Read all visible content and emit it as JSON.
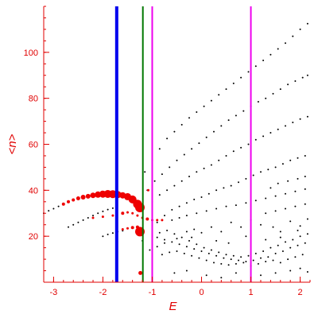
{
  "chart_data": {
    "type": "scatter",
    "xlabel": "E",
    "ylabel": "<n>",
    "xlim": [
      -3.2,
      2.2
    ],
    "ylim": [
      0,
      120
    ],
    "x_ticks": [
      -3,
      -2,
      -1,
      0,
      1,
      2
    ],
    "y_ticks": [
      20,
      40,
      60,
      80,
      100
    ],
    "x_tick_labels": [
      "-3",
      "-2",
      "-1",
      "0",
      "1",
      "2"
    ],
    "y_tick_labels": [
      "20",
      "40",
      "60",
      "80",
      "100"
    ],
    "axis_color": "#e00000",
    "grid": false,
    "vertical_lines": [
      {
        "x": -1.72,
        "color": "#0000ee"
      },
      {
        "x": -1.19,
        "color": "#007700"
      },
      {
        "x": -1.0,
        "color": "#ee00ee"
      },
      {
        "x": 1.0,
        "color": "#ee00ee"
      }
    ],
    "series": [
      {
        "color": "#000000",
        "points": [
          [
            -3.2,
            30.0
          ],
          [
            -3.1,
            31.1
          ],
          [
            -3.0,
            32.0
          ],
          [
            -2.9,
            33.0
          ],
          [
            -2.8,
            34.1
          ],
          [
            -2.7,
            35.0
          ],
          [
            -2.6,
            36.0
          ],
          [
            -2.5,
            36.8
          ],
          [
            -2.4,
            37.4
          ],
          [
            -2.7,
            24.0
          ],
          [
            -2.6,
            25.0
          ],
          [
            -2.5,
            26.0
          ],
          [
            -2.4,
            27.0
          ],
          [
            -2.3,
            28.0
          ],
          [
            -2.2,
            29.0
          ],
          [
            -2.1,
            30.0
          ],
          [
            -2.0,
            30.8
          ],
          [
            -1.9,
            31.6
          ],
          [
            -1.8,
            32.2
          ],
          [
            -2.0,
            20.0
          ],
          [
            -1.9,
            20.8
          ],
          [
            -1.8,
            21.4
          ],
          [
            -1.7,
            22.0
          ],
          [
            -1.6,
            22.4
          ],
          [
            -1.15,
            48.0
          ],
          [
            -1.0,
            53.0
          ],
          [
            -0.85,
            58.0
          ],
          [
            -0.7,
            62.5
          ],
          [
            -0.55,
            65.5
          ],
          [
            -0.4,
            68.5
          ],
          [
            -0.25,
            71.5
          ],
          [
            -0.1,
            74.0
          ],
          [
            0.05,
            76.5
          ],
          [
            0.2,
            79.0
          ],
          [
            0.35,
            81.5
          ],
          [
            0.5,
            84.0
          ],
          [
            0.65,
            86.5
          ],
          [
            0.8,
            89.0
          ],
          [
            0.95,
            91.5
          ],
          [
            1.1,
            94.0
          ],
          [
            1.25,
            96.5
          ],
          [
            1.4,
            99.0
          ],
          [
            1.55,
            101.5
          ],
          [
            1.7,
            104.0
          ],
          [
            1.85,
            107.0
          ],
          [
            2.0,
            110.0
          ],
          [
            2.15,
            112.5
          ],
          [
            -1.1,
            40.0
          ],
          [
            -0.95,
            44.0
          ],
          [
            -0.8,
            47.0
          ],
          [
            -0.65,
            50.0
          ],
          [
            -0.5,
            53.0
          ],
          [
            -0.35,
            55.5
          ],
          [
            -0.2,
            58.0
          ],
          [
            -0.05,
            60.5
          ],
          [
            0.1,
            63.0
          ],
          [
            0.25,
            65.5
          ],
          [
            0.4,
            68.0
          ],
          [
            0.55,
            70.5
          ],
          [
            0.7,
            72.5
          ],
          [
            0.85,
            74.5
          ],
          [
            1.0,
            76.5
          ],
          [
            1.15,
            78.5
          ],
          [
            1.3,
            80.0
          ],
          [
            1.45,
            82.0
          ],
          [
            1.6,
            84.0
          ],
          [
            1.75,
            86.0
          ],
          [
            1.9,
            87.5
          ],
          [
            2.05,
            89.0
          ],
          [
            2.15,
            90.0
          ],
          [
            -1.0,
            35.0
          ],
          [
            -0.85,
            38.0
          ],
          [
            -0.7,
            40.0
          ],
          [
            -0.55,
            42.0
          ],
          [
            -0.4,
            44.0
          ],
          [
            -0.25,
            46.0
          ],
          [
            -0.1,
            48.0
          ],
          [
            0.05,
            49.5
          ],
          [
            0.2,
            51.0
          ],
          [
            0.35,
            53.0
          ],
          [
            0.5,
            55.0
          ],
          [
            0.65,
            57.0
          ],
          [
            0.8,
            58.5
          ],
          [
            0.95,
            60.0
          ],
          [
            1.1,
            62.0
          ],
          [
            1.25,
            63.5
          ],
          [
            1.4,
            65.0
          ],
          [
            1.55,
            66.5
          ],
          [
            1.7,
            68.0
          ],
          [
            1.85,
            69.5
          ],
          [
            2.0,
            71.0
          ],
          [
            2.15,
            72.0
          ],
          [
            -0.9,
            26.0
          ],
          [
            -0.75,
            29.0
          ],
          [
            -0.6,
            31.5
          ],
          [
            -0.45,
            33.0
          ],
          [
            -0.3,
            34.5
          ],
          [
            -0.15,
            36.0
          ],
          [
            0.0,
            37.0
          ],
          [
            0.15,
            38.5
          ],
          [
            0.3,
            40.0
          ],
          [
            0.45,
            41.0
          ],
          [
            0.6,
            42.0
          ],
          [
            0.75,
            43.5
          ],
          [
            0.9,
            45.0
          ],
          [
            1.05,
            46.5
          ],
          [
            1.2,
            48.0
          ],
          [
            1.35,
            49.0
          ],
          [
            1.5,
            50.0
          ],
          [
            1.65,
            51.5
          ],
          [
            1.8,
            53.0
          ],
          [
            1.95,
            54.0
          ],
          [
            2.1,
            55.0
          ],
          [
            -0.6,
            27.0
          ],
          [
            -0.45,
            28.0
          ],
          [
            -0.3,
            29.0
          ],
          [
            -0.1,
            30.0
          ],
          [
            0.1,
            31.0
          ],
          [
            0.3,
            32.0
          ],
          [
            0.5,
            33.0
          ],
          [
            0.7,
            33.5
          ],
          [
            0.9,
            34.5
          ],
          [
            1.1,
            35.5
          ],
          [
            1.3,
            36.5
          ],
          [
            1.5,
            37.5
          ],
          [
            1.7,
            38.5
          ],
          [
            1.9,
            39.5
          ],
          [
            2.1,
            40.5
          ],
          [
            1.4,
            41.0
          ],
          [
            1.55,
            43.0
          ],
          [
            1.75,
            44.0
          ],
          [
            1.95,
            45.0
          ],
          [
            2.1,
            46.0
          ],
          [
            1.3,
            30.0
          ],
          [
            1.5,
            31.0
          ],
          [
            1.7,
            32.0
          ],
          [
            1.9,
            33.0
          ],
          [
            2.1,
            34.0
          ],
          [
            -1.2,
            18.0
          ],
          [
            -1.0,
            20.0
          ],
          [
            -0.85,
            21.5
          ],
          [
            -0.7,
            22.5
          ],
          [
            -0.55,
            21.0
          ],
          [
            -0.4,
            19.5
          ],
          [
            -0.25,
            18.0
          ],
          [
            -0.1,
            16.5
          ],
          [
            0.05,
            15.0
          ],
          [
            0.2,
            14.0
          ],
          [
            0.35,
            13.0
          ],
          [
            0.5,
            12.0
          ],
          [
            0.65,
            11.5
          ],
          [
            0.8,
            11.0
          ],
          [
            0.95,
            11.5
          ],
          [
            1.1,
            12.5
          ],
          [
            1.25,
            13.5
          ],
          [
            1.4,
            15.0
          ],
          [
            1.55,
            16.0
          ],
          [
            1.7,
            17.5
          ],
          [
            1.85,
            18.5
          ],
          [
            2.0,
            20.0
          ],
          [
            2.15,
            21.0
          ],
          [
            -1.05,
            14.0
          ],
          [
            -0.9,
            15.5
          ],
          [
            -0.75,
            17.0
          ],
          [
            -0.6,
            17.5
          ],
          [
            -0.45,
            16.5
          ],
          [
            -0.3,
            15.5
          ],
          [
            -0.15,
            14.5
          ],
          [
            0.0,
            13.5
          ],
          [
            0.15,
            12.5
          ],
          [
            0.3,
            11.5
          ],
          [
            0.45,
            10.5
          ],
          [
            0.6,
            10.0
          ],
          [
            0.75,
            9.5
          ],
          [
            0.9,
            9.0
          ],
          [
            1.05,
            9.5
          ],
          [
            1.2,
            10.5
          ],
          [
            1.35,
            11.0
          ],
          [
            1.5,
            12.5
          ],
          [
            1.65,
            13.5
          ],
          [
            1.8,
            15.0
          ],
          [
            1.95,
            16.0
          ],
          [
            2.1,
            17.0
          ],
          [
            -0.8,
            12.0
          ],
          [
            -0.65,
            13.0
          ],
          [
            -0.5,
            13.5
          ],
          [
            -0.35,
            12.5
          ],
          [
            -0.2,
            11.5
          ],
          [
            -0.05,
            10.5
          ],
          [
            0.1,
            9.5
          ],
          [
            0.25,
            8.5
          ],
          [
            0.4,
            8.0
          ],
          [
            0.55,
            7.5
          ],
          [
            0.7,
            8.0
          ],
          [
            0.85,
            8.5
          ],
          [
            1.0,
            7.0
          ],
          [
            1.15,
            8.0
          ],
          [
            1.3,
            9.0
          ],
          [
            1.45,
            9.5
          ],
          [
            1.6,
            8.5
          ],
          [
            1.75,
            10.0
          ],
          [
            1.9,
            11.0
          ],
          [
            2.05,
            12.0
          ],
          [
            -0.3,
            22.0
          ],
          [
            -0.15,
            23.0
          ],
          [
            0.0,
            21.5
          ],
          [
            0.2,
            24.0
          ],
          [
            0.4,
            22.0
          ],
          [
            0.6,
            26.0
          ],
          [
            0.8,
            24.0
          ],
          [
            1.0,
            27.0
          ],
          [
            1.2,
            25.0
          ],
          [
            1.45,
            24.0
          ],
          [
            1.6,
            22.0
          ],
          [
            1.8,
            26.5
          ],
          [
            2.0,
            24.5
          ],
          [
            2.15,
            27.5
          ],
          [
            -0.55,
            4.0
          ],
          [
            -0.3,
            5.0
          ],
          [
            0.1,
            3.0
          ],
          [
            0.4,
            2.0
          ],
          [
            0.7,
            4.0
          ],
          [
            1.2,
            3.0
          ],
          [
            1.5,
            4.0
          ],
          [
            1.8,
            5.0
          ],
          [
            2.0,
            6.0
          ],
          [
            2.15,
            4.5
          ],
          [
            -0.9,
            19.5
          ],
          [
            -0.75,
            18.5
          ],
          [
            -0.5,
            19.0
          ],
          [
            -0.2,
            19.5
          ],
          [
            0.3,
            18.0
          ],
          [
            0.55,
            17.0
          ],
          [
            0.9,
            20.0
          ],
          [
            1.3,
            18.5
          ],
          [
            1.6,
            19.5
          ],
          [
            1.95,
            22.5
          ]
        ]
      },
      {
        "color": "#ee0000",
        "points": [
          [
            -2.8,
            34.0
          ],
          [
            -2.7,
            35.0
          ],
          [
            -2.6,
            35.8
          ],
          [
            -2.5,
            36.5
          ],
          [
            -2.4,
            37.0
          ],
          [
            -2.3,
            37.4
          ],
          [
            -2.2,
            37.8
          ],
          [
            -2.1,
            38.1
          ],
          [
            -2.0,
            38.3
          ],
          [
            -1.9,
            38.4
          ],
          [
            -1.8,
            38.3
          ],
          [
            -1.7,
            38.1
          ],
          [
            -1.6,
            37.8
          ],
          [
            -1.5,
            37.2
          ],
          [
            -1.4,
            36.0
          ],
          [
            -1.3,
            34.0
          ],
          [
            -1.25,
            32.5
          ],
          [
            -2.2,
            28.0
          ],
          [
            -2.0,
            28.5
          ],
          [
            -1.8,
            29.0
          ],
          [
            -1.6,
            30.0
          ],
          [
            -1.5,
            30.4
          ],
          [
            -1.4,
            30.0
          ],
          [
            -1.3,
            29.0
          ],
          [
            -1.2,
            28.0
          ],
          [
            -1.1,
            27.5
          ],
          [
            -1.0,
            27.0
          ],
          [
            -0.9,
            27.0
          ],
          [
            -0.8,
            27.0
          ],
          [
            -1.6,
            23.0
          ],
          [
            -1.5,
            23.4
          ],
          [
            -1.4,
            23.8
          ],
          [
            -1.3,
            24.0
          ],
          [
            -1.25,
            22.0
          ],
          [
            -1.08,
            40.0
          ],
          [
            -1.24,
            4.0
          ]
        ],
        "marker_sizes": [
          2,
          2,
          2,
          2.5,
          3,
          3,
          3.5,
          4,
          4.5,
          5,
          5,
          4.5,
          4,
          4.5,
          5,
          5.5,
          6,
          1.5,
          1.5,
          1.5,
          2,
          1.5,
          1.5,
          1.5,
          1.5,
          2,
          1.5,
          1.5,
          1.5,
          1.5,
          1.5,
          2,
          2,
          6,
          1.5,
          2.5
        ]
      }
    ]
  }
}
